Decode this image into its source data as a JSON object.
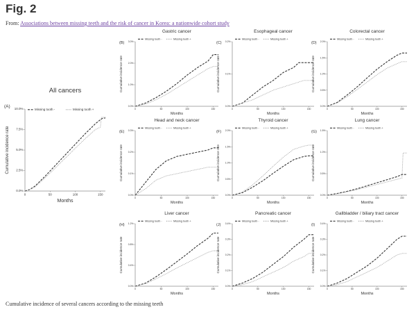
{
  "page": {
    "figure_label": "Fig. 2",
    "from_prefix": "From: ",
    "source_link_text": "Associations between missing teeth and the risk of cancer in Korea: a nationwide cohort study",
    "caption": "Cumulative incidence of several cancers according to the missing teeth"
  },
  "colors": {
    "missing_tooth_minus": "#9a9a9a",
    "missing_tooth_plus": "#333333",
    "link": "#6b3fa0"
  },
  "chart_data": [
    {
      "type": "line",
      "panel": "(A)",
      "title": "All cancers",
      "xlabel": "Months",
      "ylabel": "Cumulative incidence rate",
      "xlim": [
        0,
        160
      ],
      "ylim": [
        0,
        0.1
      ],
      "xticks": [
        0,
        50,
        100,
        150
      ],
      "yticks": [
        0,
        0.025,
        0.05,
        0.075,
        0.1
      ],
      "ytick_labels": [
        "0.0%",
        "2.5%",
        "5.0%",
        "7.5%",
        "10.0%"
      ],
      "legend": [
        "Missing tooth -",
        "Missing tooth +"
      ],
      "legend_position": "top-left",
      "series": [
        {
          "name": "Missing tooth -",
          "style": "dashed",
          "x": [
            0,
            10,
            20,
            40,
            60,
            80,
            100,
            120,
            140,
            150,
            155,
            160
          ],
          "y": [
            0,
            0.002,
            0.006,
            0.018,
            0.031,
            0.044,
            0.057,
            0.07,
            0.082,
            0.087,
            0.089,
            0.089
          ]
        },
        {
          "name": "Missing tooth +",
          "style": "dotted",
          "x": [
            0,
            10,
            20,
            40,
            60,
            80,
            100,
            120,
            140,
            150,
            152,
            160
          ],
          "y": [
            0,
            0.002,
            0.005,
            0.016,
            0.028,
            0.04,
            0.052,
            0.064,
            0.075,
            0.078,
            0.09,
            0.09
          ]
        }
      ]
    },
    {
      "type": "line",
      "panel": "(B)",
      "title": "Gastric cancer",
      "xlabel": "Months",
      "ylabel": "Cumulative incidence rate",
      "xlim": [
        0,
        160
      ],
      "ylim": [
        0,
        0.03
      ],
      "xticks": [
        0,
        50,
        100,
        150
      ],
      "yticks": [
        0,
        0.01,
        0.02,
        0.03
      ],
      "ytick_labels": [
        "0.0%",
        "1.0%",
        "2.0%",
        "3.0%"
      ],
      "legend": [
        "Missing tooth -",
        "Missing tooth +"
      ],
      "legend_position": "top-left",
      "series": [
        {
          "name": "Missing tooth -",
          "style": "dashed",
          "x": [
            0,
            20,
            40,
            60,
            80,
            100,
            120,
            140,
            150,
            160
          ],
          "y": [
            0,
            0.0015,
            0.004,
            0.007,
            0.0105,
            0.0145,
            0.018,
            0.021,
            0.024,
            0.024
          ]
        },
        {
          "name": "Missing tooth +",
          "style": "dotted",
          "x": [
            0,
            20,
            40,
            60,
            80,
            100,
            120,
            140,
            150,
            160
          ],
          "y": [
            0,
            0.001,
            0.003,
            0.0055,
            0.0085,
            0.0115,
            0.0145,
            0.0175,
            0.0185,
            0.0185
          ]
        }
      ]
    },
    {
      "type": "line",
      "panel": "(C)",
      "title": "Esophageal cancer",
      "xlabel": "Months",
      "ylabel": "Cumulative incidence rate",
      "xlim": [
        0,
        160
      ],
      "ylim": [
        0,
        0.002
      ],
      "xticks": [
        0,
        50,
        100,
        150
      ],
      "yticks": [
        0,
        0.001,
        0.002
      ],
      "ytick_labels": [
        "0.0%",
        "0.1%",
        "0.2%"
      ],
      "legend": [
        "Missing tooth -",
        "Missing tooth +"
      ],
      "legend_position": "top-left",
      "series": [
        {
          "name": "Missing tooth -",
          "style": "dashed",
          "x": [
            0,
            20,
            40,
            60,
            80,
            100,
            120,
            130,
            140,
            160
          ],
          "y": [
            0,
            0.0001,
            0.00035,
            0.0006,
            0.0008,
            0.00105,
            0.0012,
            0.00135,
            0.00135,
            0.00135
          ]
        },
        {
          "name": "Missing tooth +",
          "style": "dotted",
          "x": [
            0,
            20,
            40,
            60,
            80,
            100,
            120,
            140,
            150,
            160
          ],
          "y": [
            0,
            0.0001,
            0.0002,
            0.00035,
            0.0005,
            0.0006,
            0.0007,
            0.0008,
            0.0008,
            0.0008
          ]
        }
      ]
    },
    {
      "type": "line",
      "panel": "(D)",
      "title": "Colorectal cancer",
      "xlabel": "Months",
      "ylabel": "Cumulative incidence rate",
      "xlim": [
        0,
        160
      ],
      "ylim": [
        0,
        0.02
      ],
      "xticks": [
        0,
        50,
        100,
        150
      ],
      "yticks": [
        0,
        0.005,
        0.01,
        0.015,
        0.02
      ],
      "ytick_labels": [
        "0.0%",
        "0.5%",
        "1.0%",
        "1.5%",
        "2.0%"
      ],
      "legend": [
        "Missing tooth -",
        "Missing tooth +"
      ],
      "legend_position": "top-left",
      "series": [
        {
          "name": "Missing tooth -",
          "style": "dashed",
          "x": [
            0,
            20,
            40,
            60,
            80,
            100,
            120,
            140,
            150,
            160
          ],
          "y": [
            0,
            0.0012,
            0.0035,
            0.006,
            0.0088,
            0.0115,
            0.0138,
            0.0158,
            0.0165,
            0.0165
          ]
        },
        {
          "name": "Missing tooth +",
          "style": "dotted",
          "x": [
            0,
            20,
            40,
            60,
            80,
            100,
            120,
            140,
            150,
            160
          ],
          "y": [
            0,
            0.001,
            0.003,
            0.0052,
            0.0075,
            0.0098,
            0.0118,
            0.0132,
            0.0138,
            0.0138
          ]
        }
      ]
    },
    {
      "type": "line",
      "panel": "(E)",
      "title": "Head and neck  cancer",
      "xlabel": "Months",
      "ylabel": "Cumulative incidence rate",
      "xlim": [
        0,
        160
      ],
      "ylim": [
        0,
        0.003
      ],
      "xticks": [
        0,
        50,
        100,
        150
      ],
      "yticks": [
        0,
        0.001,
        0.002,
        0.003
      ],
      "ytick_labels": [
        "0.0%",
        "0.1%",
        "0.2%",
        "0.3%"
      ],
      "legend": [
        "Missing tooth -",
        "Missing tooth +"
      ],
      "legend_position": "top-left",
      "series": [
        {
          "name": "Missing tooth -",
          "style": "dashed",
          "x": [
            0,
            20,
            40,
            60,
            80,
            100,
            120,
            140,
            150,
            160
          ],
          "y": [
            0,
            0.0006,
            0.0012,
            0.0016,
            0.0018,
            0.0019,
            0.002,
            0.0021,
            0.0022,
            0.0022
          ]
        },
        {
          "name": "Missing tooth +",
          "style": "dotted",
          "x": [
            0,
            20,
            40,
            60,
            80,
            100,
            120,
            140,
            150,
            160
          ],
          "y": [
            0,
            0.0003,
            0.0007,
            0.0009,
            0.001,
            0.0011,
            0.0012,
            0.0013,
            0.0013,
            0.0013
          ]
        }
      ]
    },
    {
      "type": "line",
      "panel": "(F)",
      "title": "Thyroid cancer",
      "xlabel": "Months",
      "ylabel": "Cumulative incidence rate",
      "xlim": [
        0,
        160
      ],
      "ylim": [
        0,
        0.02
      ],
      "xticks": [
        0,
        50,
        100,
        150
      ],
      "yticks": [
        0,
        0.005,
        0.01,
        0.015,
        0.02
      ],
      "ytick_labels": [
        "0.0%",
        "0.5%",
        "1.0%",
        "1.5%",
        "2.0%"
      ],
      "legend": [
        "Missing tooth -",
        "Missing tooth +"
      ],
      "legend_position": "top-left",
      "series": [
        {
          "name": "Missing tooth -",
          "style": "dashed",
          "x": [
            0,
            20,
            40,
            60,
            80,
            100,
            120,
            140,
            150,
            160
          ],
          "y": [
            0,
            0.0008,
            0.0025,
            0.0045,
            0.0068,
            0.009,
            0.011,
            0.012,
            0.0122,
            0.0122
          ]
        },
        {
          "name": "Missing tooth +",
          "style": "dotted",
          "x": [
            0,
            20,
            40,
            60,
            80,
            100,
            120,
            140,
            150,
            160
          ],
          "y": [
            0,
            0.001,
            0.0032,
            0.006,
            0.009,
            0.0118,
            0.0142,
            0.0152,
            0.0155,
            0.0155
          ]
        }
      ]
    },
    {
      "type": "line",
      "panel": "(G)",
      "title": "Lung cancer",
      "xlabel": "Months",
      "ylabel": "Cumulative incidence rate",
      "xlim": [
        0,
        160
      ],
      "ylim": [
        0,
        0.015
      ],
      "xticks": [
        0,
        50,
        100,
        150
      ],
      "yticks": [
        0,
        0.005,
        0.01,
        0.015
      ],
      "ytick_labels": [
        "0.0%",
        "0.5%",
        "1.0%",
        "1.5%"
      ],
      "legend": [
        "Missing tooth -",
        "Missing tooth +"
      ],
      "legend_position": "top-left",
      "series": [
        {
          "name": "Missing tooth -",
          "style": "dashed",
          "x": [
            0,
            20,
            40,
            60,
            80,
            100,
            120,
            140,
            150,
            160
          ],
          "y": [
            0,
            0.0004,
            0.0009,
            0.0015,
            0.0022,
            0.0029,
            0.0036,
            0.0043,
            0.0048,
            0.0048
          ]
        },
        {
          "name": "Missing tooth +",
          "style": "dotted",
          "x": [
            0,
            20,
            40,
            60,
            80,
            100,
            120,
            140,
            150,
            152,
            160
          ],
          "y": [
            0,
            0.0003,
            0.0008,
            0.0013,
            0.0019,
            0.0025,
            0.0031,
            0.0037,
            0.004,
            0.0098,
            0.0098
          ]
        }
      ]
    },
    {
      "type": "line",
      "panel": "(H)",
      "title": "Liver cancer",
      "xlabel": "Months",
      "ylabel": "Cumulative incidence rate",
      "xlim": [
        0,
        160
      ],
      "ylim": [
        0,
        0.012
      ],
      "xticks": [
        0,
        50,
        100,
        150
      ],
      "yticks": [
        0,
        0.004,
        0.008,
        0.012
      ],
      "ytick_labels": [
        "0.0%",
        "0.4%",
        "0.8%",
        "1.2%"
      ],
      "legend": [
        "Missing tooth -",
        "Missing tooth +"
      ],
      "legend_position": "top-left",
      "series": [
        {
          "name": "Missing tooth -",
          "style": "dashed",
          "x": [
            0,
            20,
            40,
            60,
            80,
            100,
            120,
            140,
            150,
            160
          ],
          "y": [
            0,
            0.0006,
            0.0018,
            0.0032,
            0.0047,
            0.0062,
            0.0078,
            0.0092,
            0.0102,
            0.0102
          ]
        },
        {
          "name": "Missing tooth +",
          "style": "dotted",
          "x": [
            0,
            20,
            40,
            60,
            80,
            100,
            120,
            140,
            150,
            160
          ],
          "y": [
            0,
            0.0005,
            0.0014,
            0.0024,
            0.0035,
            0.0045,
            0.0055,
            0.0065,
            0.0068,
            0.0068
          ]
        }
      ]
    },
    {
      "type": "line",
      "panel": "(J)",
      "title": "Pancreatic cancer",
      "xlabel": "Months",
      "ylabel": "Cumulative incidence rate",
      "xlim": [
        0,
        160
      ],
      "ylim": [
        0,
        0.004
      ],
      "xticks": [
        0,
        50,
        100,
        150
      ],
      "yticks": [
        0,
        0.001,
        0.002,
        0.003,
        0.004
      ],
      "ytick_labels": [
        "0.0%",
        "0.1%",
        "0.2%",
        "0.3%",
        "0.4%"
      ],
      "legend": [
        "Missing tooth -",
        "Missing tooth +"
      ],
      "legend_position": "top-left",
      "series": [
        {
          "name": "Missing tooth -",
          "style": "dashed",
          "x": [
            0,
            20,
            40,
            60,
            80,
            100,
            120,
            140,
            150,
            160
          ],
          "y": [
            0,
            0.0002,
            0.0005,
            0.0009,
            0.0014,
            0.0019,
            0.0025,
            0.003,
            0.0033,
            0.0033
          ]
        },
        {
          "name": "Missing tooth +",
          "style": "dotted",
          "x": [
            0,
            20,
            40,
            60,
            80,
            100,
            120,
            140,
            150,
            160
          ],
          "y": [
            0,
            0.0001,
            0.0003,
            0.0006,
            0.0009,
            0.0012,
            0.0016,
            0.0019,
            0.0021,
            0.0021
          ]
        }
      ]
    },
    {
      "type": "line",
      "panel": "(I)",
      "title": "Gallbladder / biliary tract cancer",
      "xlabel": "Months",
      "ylabel": "Cumulative incidence rate",
      "xlim": [
        0,
        160
      ],
      "ylim": [
        0,
        0.004
      ],
      "xticks": [
        0,
        50,
        100,
        150
      ],
      "yticks": [
        0,
        0.001,
        0.002,
        0.003,
        0.004
      ],
      "ytick_labels": [
        "0.0%",
        "0.1%",
        "0.2%",
        "0.3%",
        "0.4%"
      ],
      "legend": [
        "Missing tooth -",
        "Missing tooth +"
      ],
      "legend_position": "top-left",
      "series": [
        {
          "name": "Missing tooth -",
          "style": "dashed",
          "x": [
            0,
            20,
            40,
            60,
            80,
            100,
            120,
            140,
            150,
            160
          ],
          "y": [
            0,
            0.0002,
            0.0005,
            0.0009,
            0.0013,
            0.0018,
            0.0024,
            0.003,
            0.0032,
            0.0032
          ]
        },
        {
          "name": "Missing tooth +",
          "style": "dotted",
          "x": [
            0,
            20,
            40,
            60,
            80,
            100,
            120,
            140,
            150,
            160
          ],
          "y": [
            0,
            0.0001,
            0.0003,
            0.0006,
            0.0009,
            0.0012,
            0.0016,
            0.002,
            0.0021,
            0.0021
          ]
        }
      ]
    }
  ]
}
